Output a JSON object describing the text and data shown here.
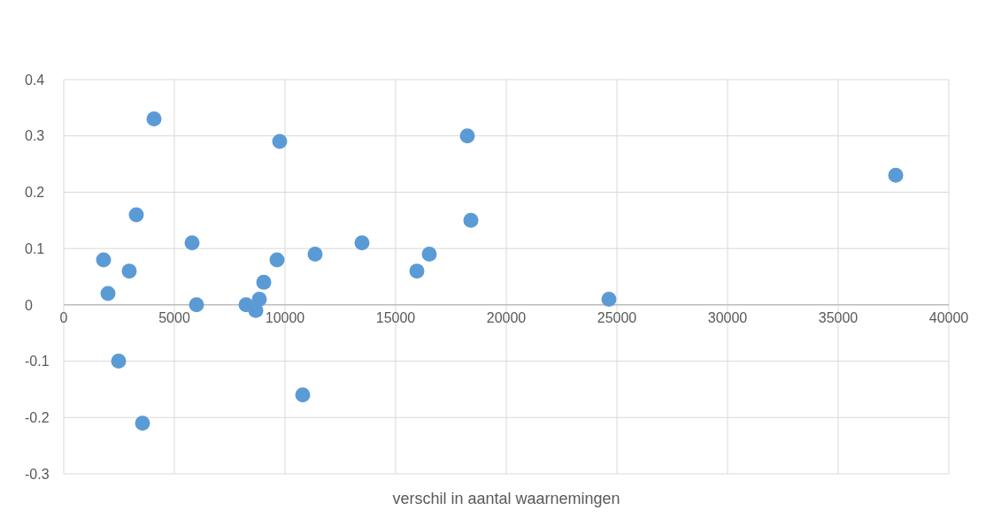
{
  "chart_data": {
    "type": "scatter",
    "xlabel": "verschil in aantal waarnemingen",
    "x": [
      1800,
      2000,
      2480,
      2960,
      3280,
      3560,
      4080,
      5800,
      6000,
      8240,
      8680,
      8840,
      9040,
      9640,
      9760,
      10800,
      11360,
      13480,
      15960,
      16520,
      18240,
      18400,
      24640,
      37600
    ],
    "values": [
      0.08,
      0.02,
      -0.1,
      0.06,
      0.16,
      -0.21,
      0.33,
      0.11,
      0,
      0,
      -0.01,
      0.01,
      0.04,
      0.08,
      0.29,
      -0.16,
      0.09,
      0.11,
      0.06,
      0.09,
      0.3,
      0.15,
      0.01,
      0.23
    ],
    "color": "#5b9bd5",
    "marker": "circle",
    "xlim": [
      0,
      40000
    ],
    "xticks": [
      0,
      5000,
      10000,
      15000,
      20000,
      25000,
      30000,
      35000,
      40000
    ],
    "ylim": [
      -0.3,
      0.4
    ],
    "yticks": [
      -0.3,
      -0.2,
      -0.1,
      0,
      0.1,
      0.2,
      0.3,
      0.4
    ],
    "grid": true
  }
}
